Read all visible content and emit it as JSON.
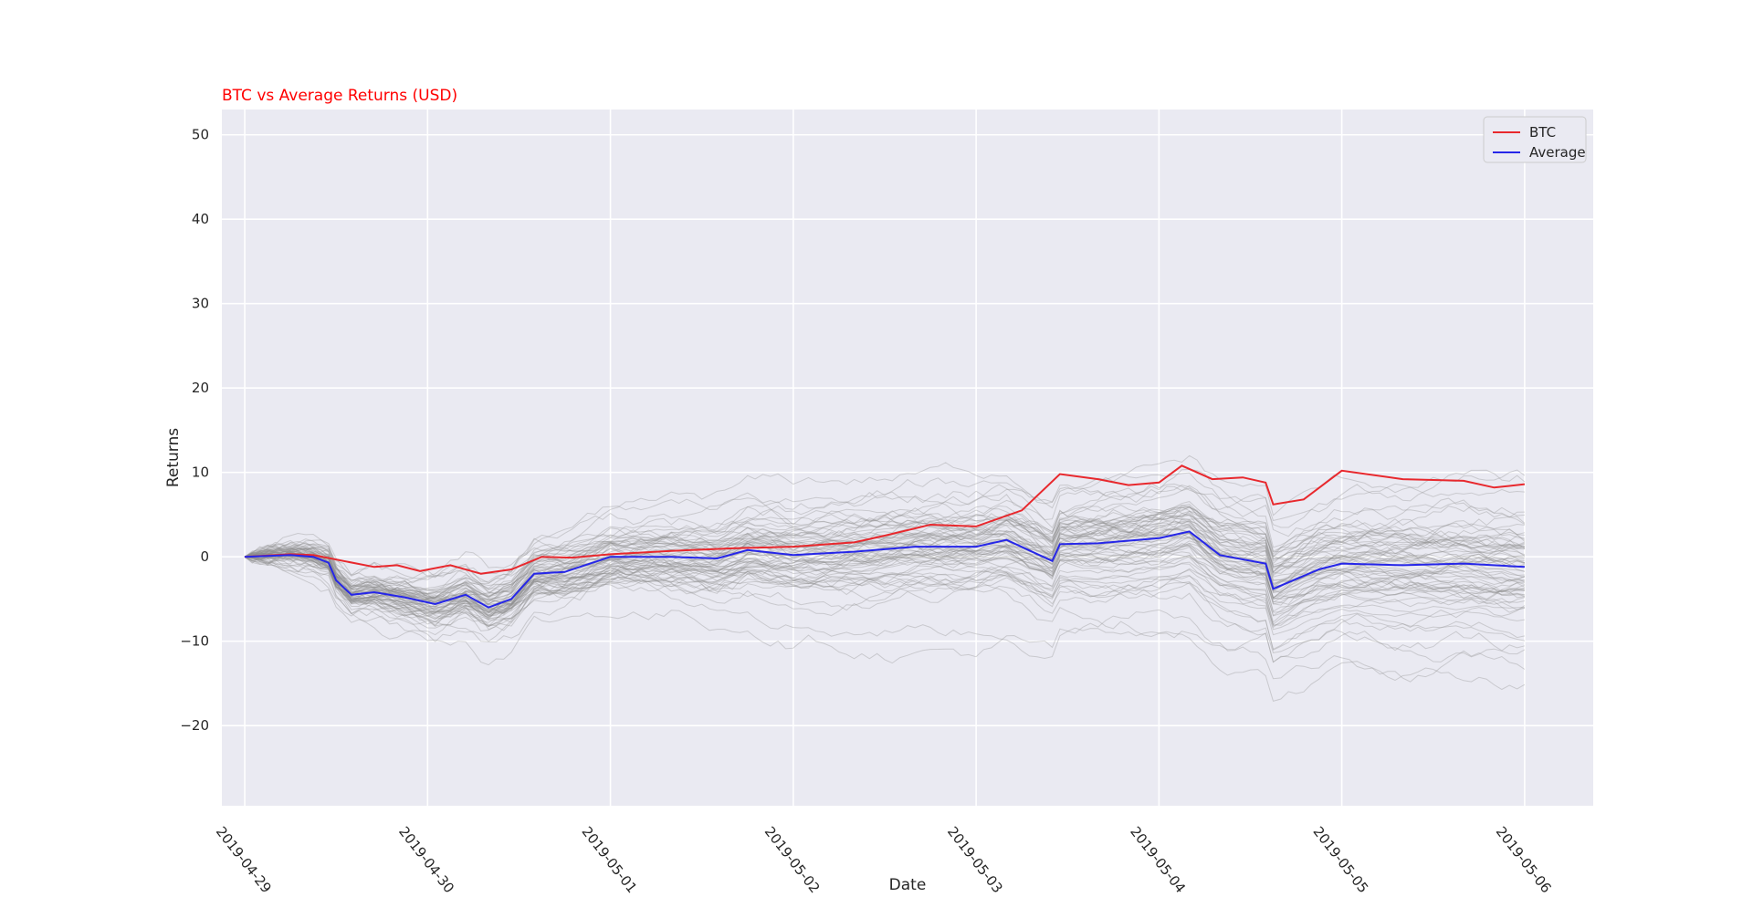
{
  "chart_data": {
    "type": "line",
    "title": "BTC vs Average Returns (USD)",
    "title_color": "#ff0000",
    "xlabel": "Date",
    "ylabel": "Returns",
    "x_ticks": [
      "2019-04-29",
      "2019-04-30",
      "2019-05-01",
      "2019-05-02",
      "2019-05-03",
      "2019-05-04",
      "2019-05-05",
      "2019-05-06"
    ],
    "y_ticks": [
      -20,
      -10,
      0,
      10,
      20,
      30,
      40,
      50
    ],
    "y_tick_labels": [
      "−20",
      "−10",
      "0",
      "10",
      "20",
      "30",
      "40",
      "50"
    ],
    "ylim": [
      -29.5,
      53
    ],
    "xlim": [
      "2019-04-28 21:00",
      "2019-05-06 09:00"
    ],
    "grid": true,
    "background": "#eaeaf2",
    "legend_position": "top-right",
    "series": [
      {
        "name": "BTC",
        "color": "#e8282d",
        "points": [
          [
            "2019-04-29 00:00",
            0
          ],
          [
            "2019-04-29 06:00",
            0.3
          ],
          [
            "2019-04-29 09:00",
            0.2
          ],
          [
            "2019-04-29 13:00",
            -0.5
          ],
          [
            "2019-04-29 17:00",
            -1.2
          ],
          [
            "2019-04-29 20:00",
            -1.0
          ],
          [
            "2019-04-29 23:00",
            -1.7
          ],
          [
            "2019-04-30 03:00",
            -1.0
          ],
          [
            "2019-04-30 07:00",
            -2.0
          ],
          [
            "2019-04-30 11:00",
            -1.5
          ],
          [
            "2019-04-30 15:00",
            0.0
          ],
          [
            "2019-04-30 19:00",
            -0.1
          ],
          [
            "2019-05-01 00:00",
            0.3
          ],
          [
            "2019-05-01 08:00",
            0.7
          ],
          [
            "2019-05-01 16:00",
            1.0
          ],
          [
            "2019-05-02 00:00",
            1.2
          ],
          [
            "2019-05-02 08:00",
            1.7
          ],
          [
            "2019-05-02 12:00",
            2.5
          ],
          [
            "2019-05-02 18:00",
            3.8
          ],
          [
            "2019-05-03 00:00",
            3.6
          ],
          [
            "2019-05-03 06:00",
            5.5
          ],
          [
            "2019-05-03 11:00",
            9.8
          ],
          [
            "2019-05-03 16:00",
            9.2
          ],
          [
            "2019-05-03 20:00",
            8.5
          ],
          [
            "2019-05-04 00:00",
            8.8
          ],
          [
            "2019-05-04 03:00",
            10.8
          ],
          [
            "2019-05-04 07:00",
            9.2
          ],
          [
            "2019-05-04 11:00",
            9.4
          ],
          [
            "2019-05-04 14:00",
            8.8
          ],
          [
            "2019-05-04 15:00",
            6.2
          ],
          [
            "2019-05-04 19:00",
            6.8
          ],
          [
            "2019-05-05 00:00",
            10.2
          ],
          [
            "2019-05-05 08:00",
            9.2
          ],
          [
            "2019-05-05 16:00",
            9.0
          ],
          [
            "2019-05-05 20:00",
            8.2
          ],
          [
            "2019-05-06 00:00",
            8.6
          ]
        ]
      },
      {
        "name": "Average",
        "color": "#2626e8",
        "points": [
          [
            "2019-04-29 00:00",
            0
          ],
          [
            "2019-04-29 06:00",
            0.2
          ],
          [
            "2019-04-29 09:00",
            0.0
          ],
          [
            "2019-04-29 11:00",
            -0.7
          ],
          [
            "2019-04-29 12:00",
            -2.8
          ],
          [
            "2019-04-29 14:00",
            -4.5
          ],
          [
            "2019-04-29 17:00",
            -4.2
          ],
          [
            "2019-04-29 21:00",
            -4.8
          ],
          [
            "2019-04-30 01:00",
            -5.6
          ],
          [
            "2019-04-30 05:00",
            -4.5
          ],
          [
            "2019-04-30 08:00",
            -6.0
          ],
          [
            "2019-04-30 11:00",
            -5.0
          ],
          [
            "2019-04-30 14:00",
            -2.0
          ],
          [
            "2019-04-30 18:00",
            -1.8
          ],
          [
            "2019-05-01 00:00",
            0.0
          ],
          [
            "2019-05-01 08:00",
            0.0
          ],
          [
            "2019-05-01 14:00",
            -0.2
          ],
          [
            "2019-05-01 18:00",
            0.8
          ],
          [
            "2019-05-02 00:00",
            0.2
          ],
          [
            "2019-05-02 08:00",
            0.6
          ],
          [
            "2019-05-02 16:00",
            1.2
          ],
          [
            "2019-05-03 00:00",
            1.2
          ],
          [
            "2019-05-03 04:00",
            2.0
          ],
          [
            "2019-05-03 10:00",
            -0.5
          ],
          [
            "2019-05-03 11:00",
            1.5
          ],
          [
            "2019-05-03 16:00",
            1.6
          ],
          [
            "2019-05-04 00:00",
            2.2
          ],
          [
            "2019-05-04 04:00",
            3.0
          ],
          [
            "2019-05-04 08:00",
            0.2
          ],
          [
            "2019-05-04 14:00",
            -0.8
          ],
          [
            "2019-05-04 15:00",
            -3.8
          ],
          [
            "2019-05-04 21:00",
            -1.5
          ],
          [
            "2019-05-05 00:00",
            -0.8
          ],
          [
            "2019-05-05 08:00",
            -1.0
          ],
          [
            "2019-05-05 16:00",
            -0.8
          ],
          [
            "2019-05-06 00:00",
            -1.2
          ]
        ]
      }
    ],
    "background_series": {
      "color": "#8c8c8c",
      "opacity": 0.35,
      "note": "many individual coin return series drawn in thin grey"
    }
  }
}
